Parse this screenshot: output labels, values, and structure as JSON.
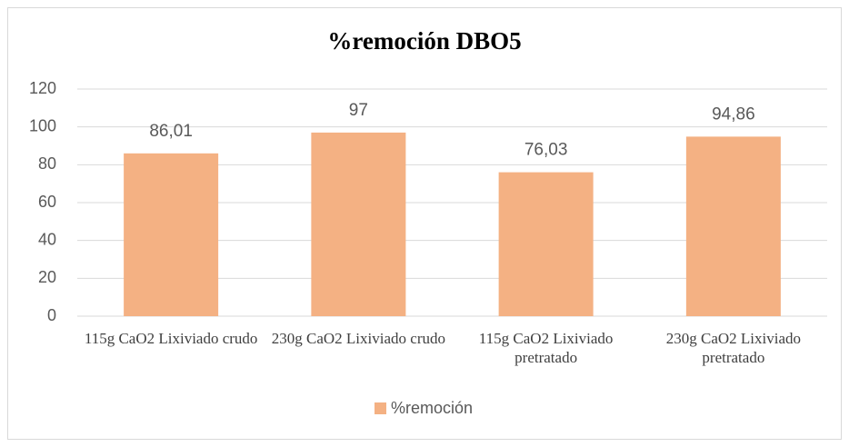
{
  "chart_data": {
    "type": "bar",
    "title": "%remoción DBO5",
    "categories": [
      "115g CaO2 Lixiviado crudo",
      "230g CaO2 Lixiviado crudo",
      "115g CaO2 Lixiviado pretratado",
      "230g CaO2 Lixiviado pretratado"
    ],
    "series": [
      {
        "name": "%remoción",
        "color": "#f4b183",
        "values": [
          86.01,
          97,
          76.03,
          94.86
        ],
        "value_labels": [
          "86,01",
          "97",
          "76,03",
          "94,86"
        ]
      }
    ],
    "ylim": [
      0,
      120
    ],
    "yticks": [
      0,
      20,
      40,
      60,
      80,
      100,
      120
    ],
    "grid": true,
    "legend": "bottom"
  }
}
